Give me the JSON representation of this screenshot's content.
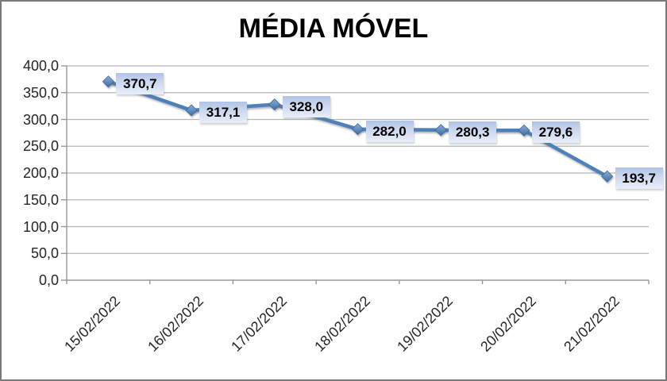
{
  "frame": {
    "background": "#ffffff",
    "border_color": "#7a7a7a"
  },
  "chart_data": {
    "type": "line",
    "title": "MÉDIA MÓVEL",
    "categories": [
      "15/02/2022",
      "16/02/2022",
      "17/02/2022",
      "18/02/2022",
      "19/02/2022",
      "20/02/2022",
      "21/02/2022"
    ],
    "values": [
      370.7,
      317.1,
      328.0,
      282.0,
      280.3,
      279.6,
      193.7
    ],
    "point_labels": [
      "370,7",
      "317,1",
      "328,0",
      "282,0",
      "280,3",
      "279,6",
      "193,7"
    ],
    "y_tick_labels": [
      "400,0",
      "350,0",
      "300,0",
      "250,0",
      "200,0",
      "150,0",
      "100,0",
      "50,0",
      "0,0"
    ],
    "y_tick_values": [
      400,
      350,
      300,
      250,
      200,
      150,
      100,
      50,
      0
    ],
    "ylim": [
      0,
      400
    ],
    "xlabel": "",
    "ylabel": "",
    "grid": true,
    "legend": "none",
    "x_tick_rotation_deg": 45,
    "colors": {
      "line": "#4e80bc",
      "marker_light": "#8badd9",
      "marker_dark": "#3e6da6",
      "marker_stroke": "#3a679f",
      "label_box_top": "#b1c3e6",
      "label_box_bottom": "#e9eef9",
      "gridline": "#b4b4b4",
      "axis": "#919191",
      "text": "#262626",
      "title": "#000000"
    }
  }
}
